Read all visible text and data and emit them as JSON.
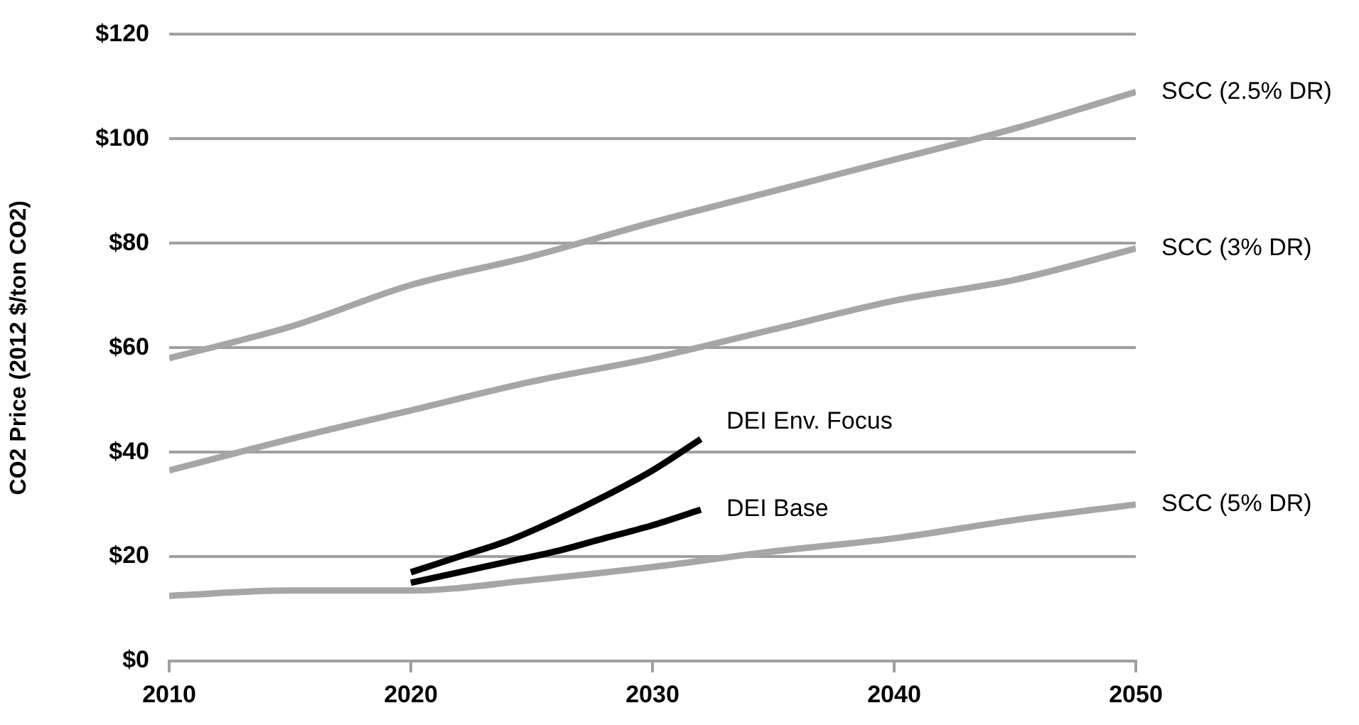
{
  "chart_data": {
    "type": "line",
    "ylabel": "CO2 Price (2012 $/ton CO2)",
    "xlim": [
      2010,
      2050
    ],
    "xticks": [
      2010,
      2020,
      2030,
      2040,
      2050
    ],
    "ylim": [
      0,
      120
    ],
    "yticks": [
      {
        "value": 0,
        "label": "$0"
      },
      {
        "value": 20,
        "label": "$20"
      },
      {
        "value": 40,
        "label": "$40"
      },
      {
        "value": 60,
        "label": "$60"
      },
      {
        "value": 80,
        "label": "$80"
      },
      {
        "value": 100,
        "label": "$100"
      },
      {
        "value": 120,
        "label": "$120"
      }
    ],
    "grid": "y",
    "legend": false,
    "marker": "none",
    "line_style": "solid",
    "series": [
      {
        "name": "SCC (2.5% DR)",
        "color": "#a6a6a6",
        "x": [
          2010,
          2015,
          2020,
          2025,
          2030,
          2035,
          2040,
          2045,
          2050
        ],
        "values": [
          58,
          64,
          72,
          77.5,
          84,
          90,
          96,
          102,
          109
        ]
      },
      {
        "name": "SCC (3% DR)",
        "color": "#a6a6a6",
        "x": [
          2010,
          2015,
          2020,
          2025,
          2030,
          2035,
          2040,
          2045,
          2050
        ],
        "values": [
          36.5,
          42.5,
          48,
          53.5,
          58,
          63.5,
          69,
          73,
          79
        ]
      },
      {
        "name": "SCC (5% DR)",
        "color": "#a6a6a6",
        "x": [
          2010,
          2015,
          2020,
          2025,
          2030,
          2035,
          2040,
          2045,
          2050
        ],
        "values": [
          12.5,
          13.5,
          13.5,
          15.5,
          18,
          21,
          23.5,
          27,
          30
        ]
      },
      {
        "name": "DEI Env. Focus",
        "color": "#000000",
        "x": [
          2020,
          2022,
          2024,
          2026,
          2028,
          2030,
          2032
        ],
        "values": [
          17,
          20,
          23,
          27,
          31.5,
          36.5,
          42.5
        ]
      },
      {
        "name": "DEI Base",
        "color": "#000000",
        "x": [
          2020,
          2022,
          2024,
          2026,
          2028,
          2030,
          2032
        ],
        "values": [
          15,
          17,
          19,
          21,
          23.5,
          26,
          29
        ]
      }
    ]
  }
}
